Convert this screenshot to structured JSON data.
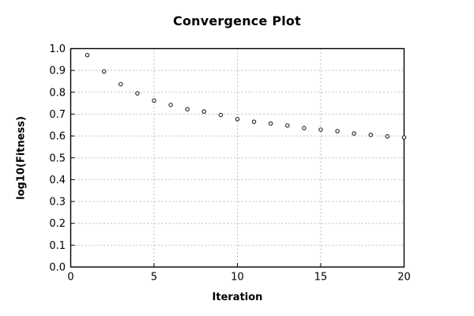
{
  "chart_data": {
    "type": "scatter",
    "title": "Convergence Plot",
    "xlabel": "Iteration",
    "ylabel": "log10(Fitness)",
    "xlim": [
      0,
      20
    ],
    "ylim": [
      0.0,
      1.0
    ],
    "xticks": [
      0,
      5,
      10,
      15,
      20
    ],
    "xtick_labels": [
      "0",
      "5",
      "10",
      "15",
      "20"
    ],
    "yticks": [
      0.0,
      0.1,
      0.2,
      0.3,
      0.4,
      0.5,
      0.6,
      0.7,
      0.8,
      0.9,
      1.0
    ],
    "ytick_labels": [
      "0.0",
      "0.1",
      "0.2",
      "0.3",
      "0.4",
      "0.5",
      "0.6",
      "0.7",
      "0.8",
      "0.9",
      "1.0"
    ],
    "grid": true,
    "legend": "none",
    "x": [
      1,
      2,
      3,
      4,
      5,
      6,
      7,
      8,
      9,
      10,
      11,
      12,
      13,
      14,
      15,
      16,
      17,
      18,
      19,
      20
    ],
    "y": [
      0.97,
      0.895,
      0.837,
      0.795,
      0.762,
      0.742,
      0.722,
      0.712,
      0.696,
      0.677,
      0.665,
      0.657,
      0.648,
      0.636,
      0.629,
      0.622,
      0.611,
      0.605,
      0.598,
      0.593
    ],
    "marker": "open-circle",
    "colors": {
      "marker_stroke": "#222222",
      "marker_fill": "#ffffff",
      "grid": "#bdbdbd",
      "border": "#000000",
      "text": "#000000",
      "background": "#ffffff"
    }
  }
}
